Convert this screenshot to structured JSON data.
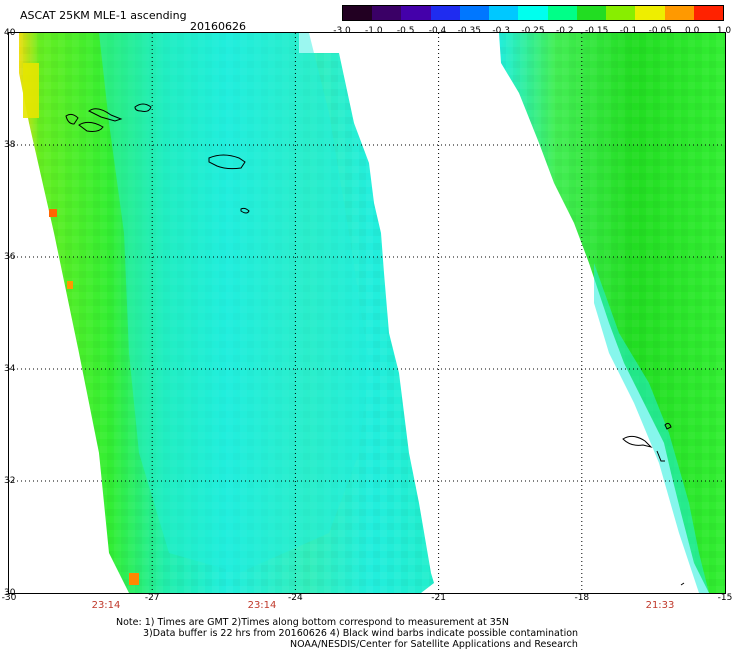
{
  "header": {
    "title": "ASCAT 25KM MLE-1 ascending",
    "date": "20160626"
  },
  "colorbar": {
    "labels": [
      "-3.0",
      "-1.0",
      "-0.5",
      "-0.4",
      "-0.35",
      "-0.3",
      "-0.25",
      "-0.2",
      "-0.15",
      "-0.1",
      "-0.05",
      "0.0",
      "1.0"
    ],
    "colors": [
      "#220022",
      "#3a0066",
      "#4400aa",
      "#1f2cf0",
      "#0077ff",
      "#00c8ff",
      "#00ffee",
      "#00ff88",
      "#22dd22",
      "#88ee00",
      "#eeee00",
      "#ff9900",
      "#ff2200"
    ]
  },
  "axes": {
    "lat_labels": [
      "40",
      "38",
      "36",
      "34",
      "32",
      "30"
    ],
    "lon_labels": [
      "-30",
      "-27",
      "-24",
      "-21",
      "-18",
      "-15"
    ],
    "lat_range": [
      30,
      40
    ],
    "lon_range": [
      -30,
      -15
    ],
    "grid": true
  },
  "swath_times": [
    "23:14",
    "23:14",
    "21:33"
  ],
  "notes": [
    "Note: 1) Times are GMT 2)Times along bottom correspond to measurement at 35N",
    "3)Data buffer is 22 hrs from 20160626 4) Black wind barbs indicate possible contamination",
    "NOAA/NESDIS/Center for Satellite Applications and Research"
  ],
  "colors": {
    "swath_base": "#33ee33",
    "swath_core": "#22eeee",
    "coastline": "#000000",
    "time_label": "#c0392b"
  }
}
